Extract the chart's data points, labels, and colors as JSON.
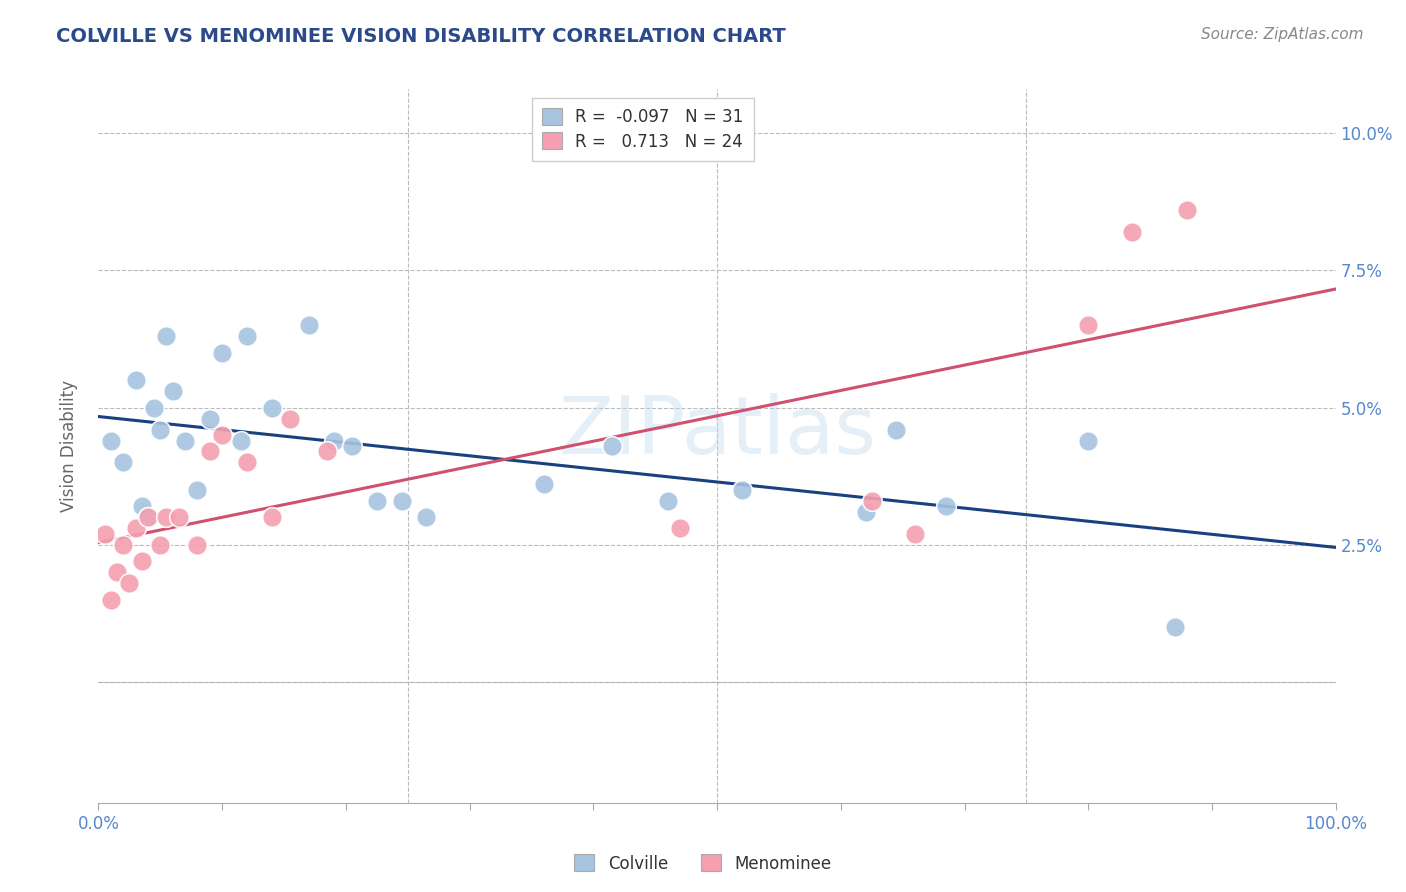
{
  "title": "COLVILLE VS MENOMINEE VISION DISABILITY CORRELATION CHART",
  "source": "Source: ZipAtlas.com",
  "ylabel": "Vision Disability",
  "xlim": [
    0.0,
    1.0
  ],
  "ylim": [
    -0.022,
    0.108
  ],
  "colville_R": -0.097,
  "colville_N": 31,
  "menominee_R": 0.713,
  "menominee_N": 24,
  "colville_color": "#a8c4e0",
  "menominee_color": "#f4a0b0",
  "colville_line_color": "#1a4080",
  "menominee_line_color": "#d05070",
  "background_color": "#ffffff",
  "grid_color": "#bbbbbb",
  "watermark": "ZIPatlas",
  "colville_x": [
    0.01,
    0.02,
    0.03,
    0.035,
    0.04,
    0.045,
    0.05,
    0.055,
    0.06,
    0.07,
    0.08,
    0.09,
    0.1,
    0.115,
    0.12,
    0.14,
    0.17,
    0.19,
    0.205,
    0.225,
    0.245,
    0.265,
    0.36,
    0.415,
    0.46,
    0.52,
    0.62,
    0.645,
    0.685,
    0.8,
    0.87
  ],
  "colville_y": [
    0.044,
    0.04,
    0.055,
    0.032,
    0.03,
    0.05,
    0.046,
    0.063,
    0.053,
    0.044,
    0.035,
    0.048,
    0.06,
    0.044,
    0.063,
    0.05,
    0.065,
    0.044,
    0.043,
    0.033,
    0.033,
    0.03,
    0.036,
    0.043,
    0.033,
    0.035,
    0.031,
    0.046,
    0.032,
    0.044,
    0.01
  ],
  "menominee_x": [
    0.005,
    0.01,
    0.015,
    0.02,
    0.025,
    0.03,
    0.035,
    0.04,
    0.05,
    0.055,
    0.065,
    0.08,
    0.09,
    0.1,
    0.12,
    0.14,
    0.155,
    0.185,
    0.47,
    0.625,
    0.66,
    0.8,
    0.835,
    0.88
  ],
  "menominee_y": [
    0.027,
    0.015,
    0.02,
    0.025,
    0.018,
    0.028,
    0.022,
    0.03,
    0.025,
    0.03,
    0.03,
    0.025,
    0.042,
    0.045,
    0.04,
    0.03,
    0.048,
    0.042,
    0.028,
    0.033,
    0.027,
    0.065,
    0.082,
    0.086
  ],
  "title_color": "#2a4a8a",
  "source_color": "#888888",
  "axis_label_color": "#5588cc",
  "legend_R_color": "#cc0000",
  "title_fontsize": 14,
  "source_fontsize": 11
}
